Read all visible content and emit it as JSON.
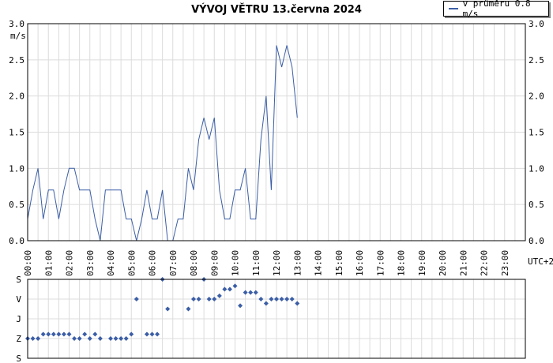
{
  "chart_data": [
    {
      "type": "line",
      "title": "VÝVOJ VĚTRU  13.června 2024",
      "ylabel": "m/s",
      "ylim": [
        0,
        3.0
      ],
      "y_ticks": [
        "0.0",
        "0.5",
        "1.0",
        "1.5",
        "2.0",
        "2.5",
        "3.0"
      ],
      "x_ticks": [
        "00:00",
        "01:00",
        "02:00",
        "03:00",
        "04:00",
        "05:00",
        "06:00",
        "07:00",
        "08:00",
        "09:00",
        "10:00",
        "11:00",
        "12:00",
        "13:00",
        "14:00",
        "15:00",
        "16:00",
        "17:00",
        "18:00",
        "19:00",
        "20:00",
        "21:00",
        "22:00",
        "23:00"
      ],
      "timezone_label": "UTC+2",
      "grid": true,
      "legend_position": "top-right",
      "series": [
        {
          "name": "v průměru 0.8 m/s",
          "color": "#3b5ea6",
          "x_hours": [
            0,
            0.25,
            0.5,
            0.75,
            1.0,
            1.25,
            1.5,
            1.75,
            2.0,
            2.25,
            2.5,
            2.75,
            3.0,
            3.25,
            3.5,
            3.75,
            4.0,
            4.25,
            4.5,
            4.75,
            5.0,
            5.25,
            5.5,
            5.75,
            6.0,
            6.25,
            6.5,
            6.75,
            7.0,
            7.25,
            7.5,
            7.75,
            8.0,
            8.25,
            8.5,
            8.75,
            9.0,
            9.25,
            9.5,
            9.75,
            10.0,
            10.25,
            10.5,
            10.75,
            11.0,
            11.25,
            11.5,
            11.75,
            12.0,
            12.25,
            12.5,
            12.75,
            13.0
          ],
          "values": [
            0.3,
            0.7,
            1.0,
            0.3,
            0.7,
            0.7,
            0.3,
            0.7,
            1.0,
            1.0,
            0.7,
            0.7,
            0.7,
            0.3,
            0.0,
            0.7,
            0.7,
            0.7,
            0.7,
            0.3,
            0.3,
            0.0,
            0.3,
            0.7,
            0.3,
            0.3,
            0.7,
            0.0,
            0.0,
            0.3,
            0.3,
            1.0,
            0.7,
            1.4,
            1.7,
            1.4,
            1.7,
            0.7,
            0.3,
            0.3,
            0.7,
            0.7,
            1.0,
            0.3,
            0.3,
            1.4,
            2.0,
            0.7,
            2.7,
            2.4,
            2.7,
            2.4,
            1.7
          ]
        }
      ]
    },
    {
      "type": "scatter",
      "title": "",
      "y_categories": [
        "S",
        "Z",
        "J",
        "V",
        "S"
      ],
      "grid": true,
      "series": [
        {
          "name": "",
          "color": "#3b5ea6",
          "x_hours": [
            0,
            0.25,
            0.5,
            0.75,
            1.0,
            1.25,
            1.5,
            1.75,
            2.0,
            2.25,
            2.5,
            2.75,
            3.0,
            3.25,
            3.5,
            3.75,
            4.0,
            4.25,
            4.5,
            4.75,
            5.0,
            5.25,
            5.5,
            5.75,
            6.0,
            6.25,
            6.5,
            6.75,
            7.0,
            7.25,
            7.5,
            7.75,
            8.0,
            8.25,
            8.5,
            8.75,
            9.0,
            9.25,
            9.5,
            9.75,
            10.0,
            10.25,
            10.5,
            10.75,
            11.0,
            11.25,
            11.5,
            11.75,
            12.0,
            12.25,
            12.5,
            12.75,
            13.0
          ],
          "direction_deg": [
            270,
            270,
            270,
            250,
            250,
            250,
            250,
            250,
            250,
            270,
            270,
            250,
            270,
            250,
            270,
            null,
            270,
            270,
            270,
            270,
            250,
            90,
            null,
            250,
            250,
            250,
            360,
            135,
            null,
            null,
            null,
            135,
            90,
            90,
            360,
            90,
            90,
            75,
            45,
            45,
            30,
            120,
            60,
            60,
            60,
            90,
            110,
            90,
            90,
            90,
            90,
            90,
            110
          ]
        }
      ]
    }
  ]
}
